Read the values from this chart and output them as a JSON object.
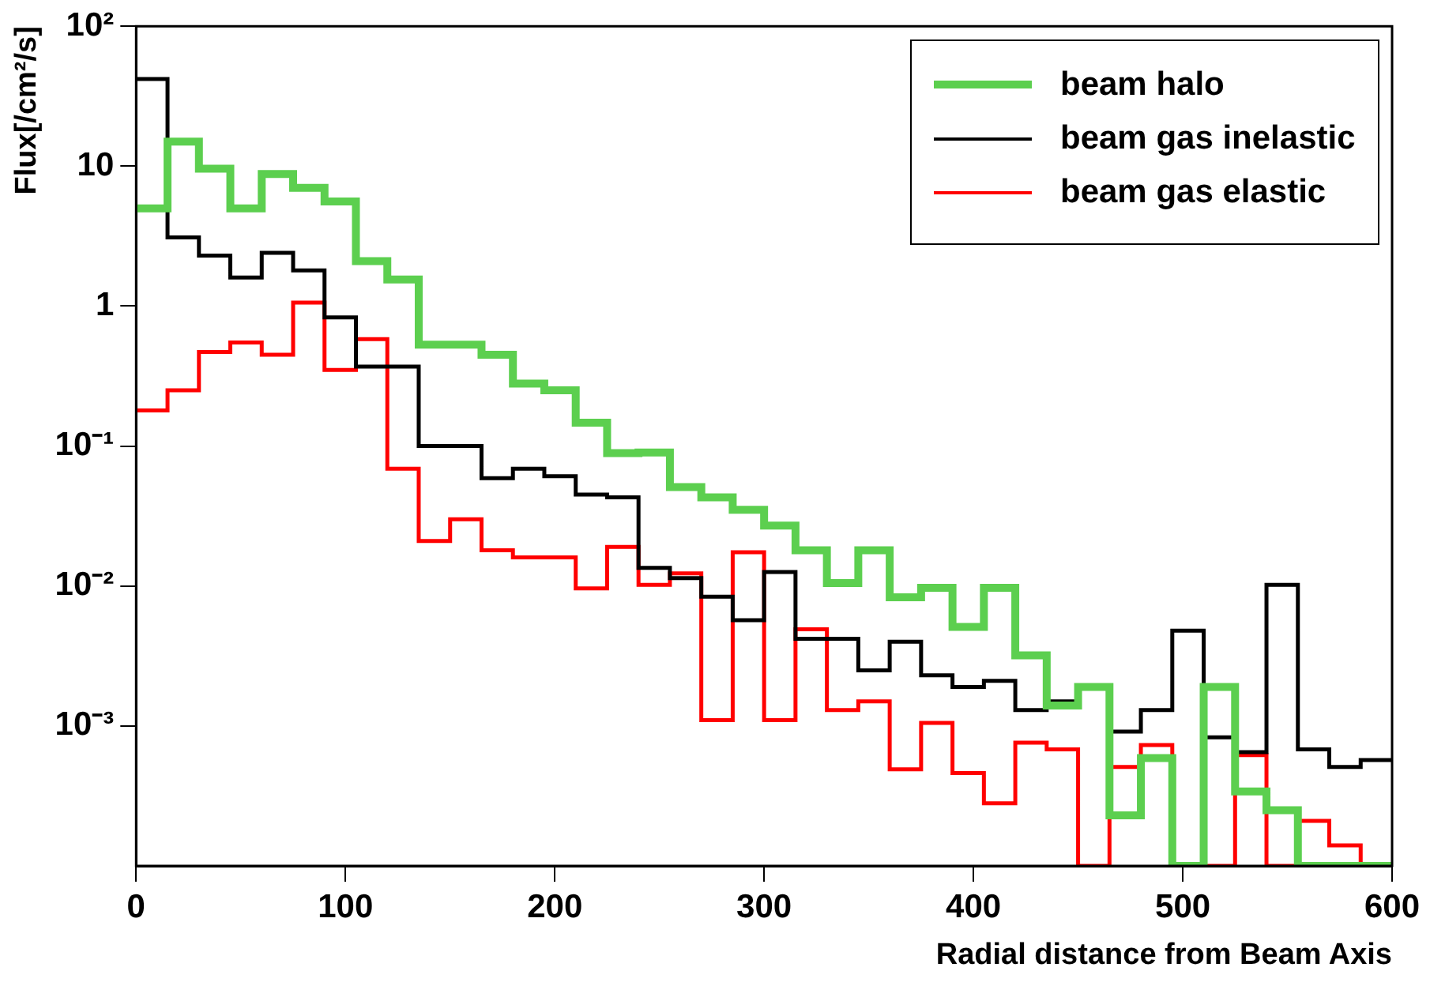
{
  "chart_data": {
    "type": "histogram",
    "xlabel": "Radial distance from Beam Axis",
    "ylabel": "Flux[/cm²/s]",
    "bins": [
      0,
      15,
      30,
      45,
      60,
      75,
      90,
      105,
      120,
      135,
      150,
      165,
      180,
      195,
      210,
      225,
      240,
      255,
      270,
      285,
      300,
      315,
      330,
      345,
      360,
      375,
      390,
      405,
      420,
      435,
      450,
      465,
      480,
      495,
      510,
      525,
      540,
      555,
      570,
      585,
      600
    ],
    "series": [
      {
        "name": "beam halo",
        "color": "#5ccf4f",
        "values": [
          5.0,
          15,
          9.6,
          5.0,
          8.8,
          7.0,
          5.6,
          2.1,
          1.55,
          0.53,
          0.53,
          0.45,
          0.28,
          0.25,
          0.147,
          0.089,
          0.09,
          0.051,
          0.043,
          0.035,
          0.027,
          0.018,
          0.0105,
          0.018,
          0.0083,
          0.0097,
          0.0051,
          0.0097,
          0.0032,
          0.0014,
          0.0019,
          0.00023,
          0.00059,
          null,
          0.0019,
          0.00034,
          0.00025,
          null,
          null,
          null
        ]
      },
      {
        "name": "beam gas inelastic",
        "color": "#000000",
        "values": [
          42,
          3.1,
          2.3,
          1.6,
          2.4,
          1.8,
          0.83,
          0.37,
          0.37,
          0.1,
          0.1,
          0.059,
          0.069,
          0.061,
          0.045,
          0.043,
          0.0135,
          0.0114,
          0.0084,
          0.0057,
          0.0126,
          0.0042,
          0.0042,
          0.0025,
          0.004,
          0.0023,
          0.0019,
          0.0021,
          0.0013,
          0.0015,
          0.0019,
          0.00091,
          0.0013,
          0.0048,
          0.00083,
          0.00065,
          0.0102,
          0.00068,
          0.00051,
          0.00057
        ]
      },
      {
        "name": "beam gas elastic",
        "color": "#ff0000",
        "values": [
          0.18,
          0.25,
          0.47,
          0.55,
          0.45,
          1.06,
          0.35,
          0.58,
          0.069,
          0.021,
          0.03,
          0.018,
          0.016,
          0.016,
          0.0096,
          0.019,
          0.0102,
          0.0123,
          0.0011,
          0.0174,
          0.0011,
          0.0049,
          0.0013,
          0.0015,
          0.00049,
          0.00105,
          0.00046,
          0.00028,
          0.00076,
          0.00068,
          null,
          0.00051,
          0.00073,
          null,
          null,
          0.00062,
          null,
          0.00021,
          0.00014,
          null
        ]
      }
    ],
    "xlim": [
      0,
      600
    ],
    "xticks": [
      0,
      100,
      200,
      300,
      400,
      500,
      600
    ],
    "log": "y",
    "ylim": [
      0.0001,
      100
    ],
    "yticks": [
      {
        "value": 0.001,
        "label": "10⁻³"
      },
      {
        "value": 0.01,
        "label": "10⁻²"
      },
      {
        "value": 0.1,
        "label": "10⁻¹"
      },
      1,
      10,
      {
        "value": 100,
        "label": "10²"
      }
    ],
    "legend": "top right"
  }
}
